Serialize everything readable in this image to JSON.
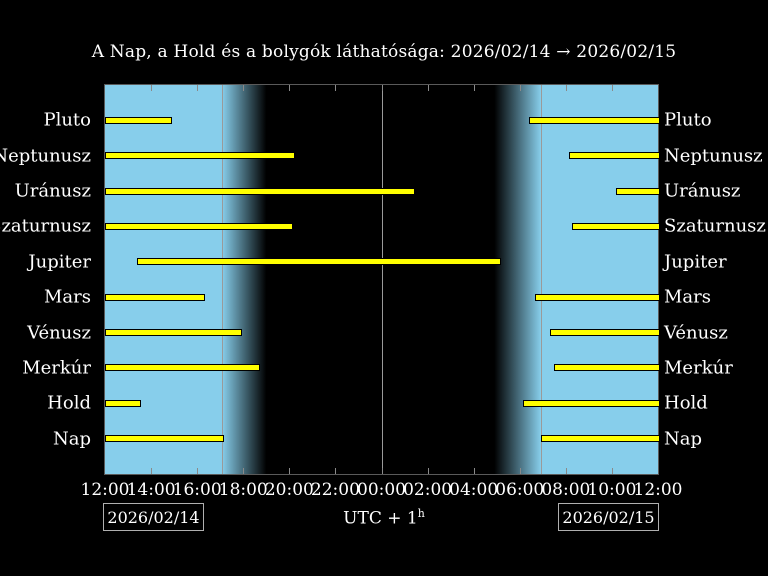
{
  "title": "A Nap, a Hold és a bolygók láthatósága: 2026/02/14 → 2026/02/15",
  "footer": {
    "date_start": "2026/02/14",
    "date_end": "2026/02/15",
    "timezone": "UTC + 1",
    "timezone_superscript": "h"
  },
  "chart_data": {
    "type": "bar",
    "subtype": "horizontal-visibility-gantt",
    "x_axis": {
      "tick_labels": [
        "12:00",
        "14:00",
        "16:00",
        "18:00",
        "20:00",
        "22:00",
        "00:00",
        "02:00",
        "04:00",
        "06:00",
        "08:00",
        "10:00",
        "12:00"
      ],
      "hours_span": 24,
      "tick_step_hours": 2
    },
    "rows": [
      {
        "label": "Pluto",
        "segments": [
          [
            0,
            2.82
          ],
          [
            18.4,
            24
          ]
        ]
      },
      {
        "label": "Neptunusz",
        "segments": [
          [
            0,
            8.16
          ],
          [
            20.14,
            24
          ]
        ]
      },
      {
        "label": "Uránusz",
        "segments": [
          [
            0,
            13.37
          ],
          [
            22.18,
            24
          ]
        ]
      },
      {
        "label": "Szaturnusz",
        "segments": [
          [
            0,
            8.07
          ],
          [
            20.27,
            24
          ]
        ]
      },
      {
        "label": "Jupiter",
        "segments": [
          [
            1.39,
            17.1
          ]
        ]
      },
      {
        "label": "Mars",
        "segments": [
          [
            0,
            4.25
          ],
          [
            18.66,
            24
          ]
        ]
      },
      {
        "label": "Vénusz",
        "segments": [
          [
            0,
            5.86
          ],
          [
            19.31,
            24
          ]
        ]
      },
      {
        "label": "Merkúr",
        "segments": [
          [
            0,
            6.64
          ],
          [
            19.49,
            24
          ]
        ]
      },
      {
        "label": "Hold",
        "segments": [
          [
            0,
            1.48
          ],
          [
            18.14,
            24
          ]
        ]
      },
      {
        "label": "Nap",
        "segments": [
          [
            0,
            5.08
          ],
          [
            18.92,
            24
          ]
        ]
      }
    ],
    "day_night": {
      "sunset_hour": 5.08,
      "dusk_end_hour": 7.0,
      "dawn_start_hour": 16.9,
      "sunrise_hour": 18.92,
      "vertical_lines_hours": [
        5.08,
        12,
        18.92
      ]
    },
    "colors": {
      "day_sky": "#87CEEB",
      "night_sky": "#000000",
      "bar_fill": "#FFFF00",
      "bar_outline": "#000000",
      "grid_line": "#9a9a9a",
      "text": "#FFFFFF"
    }
  }
}
